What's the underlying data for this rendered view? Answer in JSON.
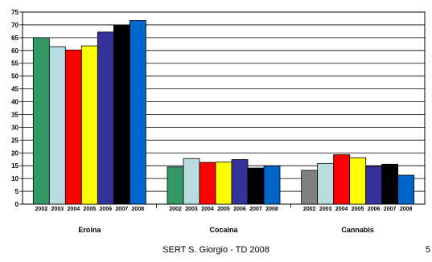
{
  "chart_data": {
    "type": "bar",
    "ylim": [
      0,
      75
    ],
    "ytick_step": 5,
    "grid": true,
    "groups": [
      {
        "label": "Eroina",
        "bars": [
          {
            "year": "2002",
            "value": 65,
            "color": "#339966"
          },
          {
            "year": "2003",
            "value": 61.5,
            "color": "#b8dde0"
          },
          {
            "year": "2004",
            "value": 60.2,
            "color": "#ff0000"
          },
          {
            "year": "2005",
            "value": 61.8,
            "color": "#ffff00"
          },
          {
            "year": "2006",
            "value": 67.2,
            "color": "#333399"
          },
          {
            "year": "2007",
            "value": 69.8,
            "color": "#000000"
          },
          {
            "year": "2008",
            "value": 71.7,
            "color": "#0066cc"
          }
        ]
      },
      {
        "label": "Cocaina",
        "bars": [
          {
            "year": "2002",
            "value": 14.5,
            "color": "#339966"
          },
          {
            "year": "2003",
            "value": 17.8,
            "color": "#b8dde0"
          },
          {
            "year": "2004",
            "value": 16.3,
            "color": "#ff0000"
          },
          {
            "year": "2005",
            "value": 16.4,
            "color": "#ffff00"
          },
          {
            "year": "2006",
            "value": 17.4,
            "color": "#333399"
          },
          {
            "year": "2007",
            "value": 14.1,
            "color": "#000000"
          },
          {
            "year": "2008",
            "value": 14.9,
            "color": "#0066cc"
          }
        ]
      },
      {
        "label": "Cannabis",
        "bars": [
          {
            "year": "2002",
            "value": 13.2,
            "color": "#808080"
          },
          {
            "year": "2003",
            "value": 15.9,
            "color": "#b8dde0"
          },
          {
            "year": "2004",
            "value": 19.3,
            "color": "#ff0000"
          },
          {
            "year": "2005",
            "value": 18.1,
            "color": "#ffff00"
          },
          {
            "year": "2006",
            "value": 14.8,
            "color": "#333399"
          },
          {
            "year": "2007",
            "value": 15.6,
            "color": "#000000"
          },
          {
            "year": "2008",
            "value": 11.3,
            "color": "#0066cc"
          }
        ]
      }
    ]
  },
  "footer": {
    "text": "SERT S. Giorgio - TD 2008",
    "page_number": "5"
  }
}
